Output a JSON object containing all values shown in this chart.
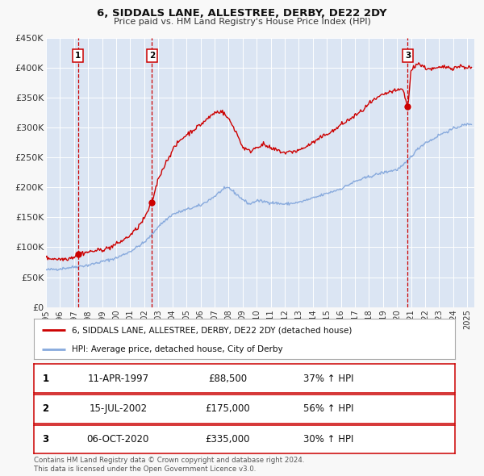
{
  "title": "6, SIDDALS LANE, ALLESTREE, DERBY, DE22 2DY",
  "subtitle": "Price paid vs. HM Land Registry's House Price Index (HPI)",
  "fig_bg": "#f8f8f8",
  "plot_bg": "#e8eef8",
  "band_color": "#d0ddf0",
  "ylabel": "",
  "ylim": [
    0,
    450000
  ],
  "yticks": [
    0,
    50000,
    100000,
    150000,
    200000,
    250000,
    300000,
    350000,
    400000,
    450000
  ],
  "ytick_labels": [
    "£0",
    "£50K",
    "£100K",
    "£150K",
    "£200K",
    "£250K",
    "£300K",
    "£350K",
    "£400K",
    "£450K"
  ],
  "xlim_start": 1995.0,
  "xlim_end": 2025.5,
  "xtick_years": [
    1995,
    1996,
    1997,
    1998,
    1999,
    2000,
    2001,
    2002,
    2003,
    2004,
    2005,
    2006,
    2007,
    2008,
    2009,
    2010,
    2011,
    2012,
    2013,
    2014,
    2015,
    2016,
    2017,
    2018,
    2019,
    2020,
    2021,
    2022,
    2023,
    2024,
    2025
  ],
  "sale_color": "#cc0000",
  "hpi_color": "#88aadd",
  "vline_color": "#cc0000",
  "purchases": [
    {
      "label": "1",
      "date_x": 1997.27,
      "price": 88500,
      "date_str": "11-APR-1997",
      "pct": "37%"
    },
    {
      "label": "2",
      "date_x": 2002.54,
      "price": 175000,
      "date_str": "15-JUL-2002",
      "pct": "56%"
    },
    {
      "label": "3",
      "date_x": 2020.76,
      "price": 335000,
      "date_str": "06-OCT-2020",
      "pct": "30%"
    }
  ],
  "legend_line1": "6, SIDDALS LANE, ALLESTREE, DERBY, DE22 2DY (detached house)",
  "legend_line2": "HPI: Average price, detached house, City of Derby",
  "table_rows": [
    {
      "label": "1",
      "date": "11-APR-1997",
      "price": "£88,500",
      "pct": "37% ↑ HPI"
    },
    {
      "label": "2",
      "date": "15-JUL-2002",
      "price": "£175,000",
      "pct": "56% ↑ HPI"
    },
    {
      "label": "3",
      "date": "06-OCT-2020",
      "price": "£335,000",
      "pct": "30% ↑ HPI"
    }
  ],
  "footer1": "Contains HM Land Registry data © Crown copyright and database right 2024.",
  "footer2": "This data is licensed under the Open Government Licence v3.0."
}
